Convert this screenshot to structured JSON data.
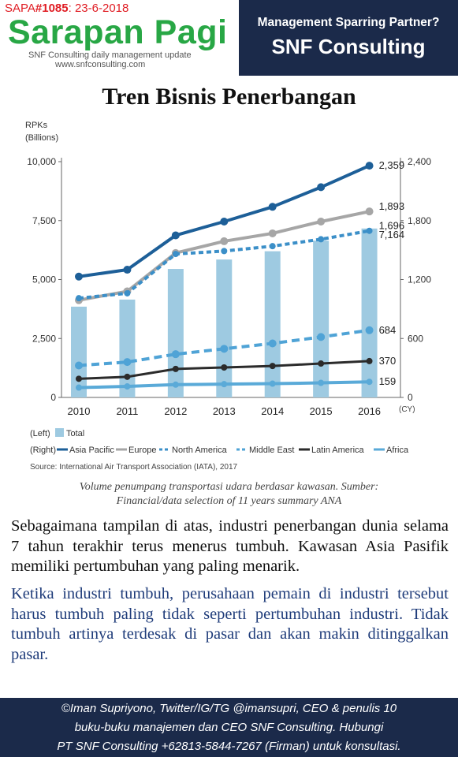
{
  "header": {
    "issue_prefix": "SAPA",
    "issue_number": "#1085",
    "issue_date": ": 23-6-2018",
    "brand_title": "Sarapan Pagi",
    "tagline": "SNF Consulting daily management update",
    "website": "www.snfconsulting.com",
    "promo_question": "Management Sparring Partner?",
    "promo_name": "SNF Consulting"
  },
  "page_title": "Tren Bisnis Penerbangan",
  "chart_data": {
    "type": "bar+line",
    "categories": [
      "2010",
      "2011",
      "2012",
      "2013",
      "2014",
      "2015",
      "2016"
    ],
    "x_unit": "(CY)",
    "left_axis": {
      "label_line1": "RPKs",
      "label_line2": "(Billions)",
      "range": [
        0,
        10000
      ],
      "ticks": [
        "0",
        "2,500",
        "5,000",
        "7,500",
        "10,000"
      ]
    },
    "right_axis": {
      "range": [
        0,
        2400
      ],
      "ticks": [
        "0",
        "600",
        "1,200",
        "1,800",
        "2,400"
      ]
    },
    "bars": {
      "name": "Total",
      "axis": "left",
      "color": "#9ecae1",
      "values": [
        3850,
        4150,
        5450,
        5850,
        6200,
        6650,
        7164
      ],
      "end_label": "7,164"
    },
    "series": [
      {
        "name": "Asia Pacific",
        "axis": "right",
        "color": "#1d5f98",
        "dash": "solid",
        "values": [
          1230,
          1300,
          1650,
          1790,
          1940,
          2140,
          2359
        ],
        "end_label": "2,359"
      },
      {
        "name": "Europe",
        "axis": "right",
        "color": "#a6a6a6",
        "dash": "solid",
        "values": [
          990,
          1080,
          1470,
          1590,
          1670,
          1790,
          1893
        ],
        "end_label": "1,893"
      },
      {
        "name": "North America",
        "axis": "right",
        "color": "#3b8fc8",
        "dash": "dashed",
        "values": [
          1010,
          1060,
          1460,
          1490,
          1540,
          1610,
          1696
        ],
        "end_label": "1,696"
      },
      {
        "name": "Middle East",
        "axis": "right",
        "color": "#4fa3d6",
        "dash": "dashed",
        "values": [
          325,
          360,
          440,
          495,
          550,
          615,
          684
        ],
        "end_label": "684"
      },
      {
        "name": "Latin America",
        "axis": "right",
        "color": "#2b2b2b",
        "dash": "solid",
        "values": [
          190,
          210,
          290,
          305,
          320,
          345,
          370
        ],
        "end_label": "370"
      },
      {
        "name": "Africa",
        "axis": "right",
        "color": "#5aaad8",
        "dash": "solid",
        "values": [
          100,
          112,
          130,
          135,
          140,
          148,
          159
        ],
        "end_label": "159"
      }
    ],
    "legend": {
      "left_prefix": "(Left)",
      "right_prefix": "(Right)",
      "placement": "bottom-left"
    },
    "source": "Source: International Air Transport Association (IATA), 2017",
    "grid": false
  },
  "caption_line1": "Volume penumpang transportasi udara berdasar kawasan. Sumber:",
  "caption_line2": "Financial/data selection of 11 years summary ANA",
  "paragraph1": "Sebagaimana tampilan di atas, industri penerbangan dunia selama 7 tahun terakhir terus menerus tumbuh. Kawasan Asia Pasifik memiliki pertumbuhan yang paling menarik.",
  "paragraph2": "Ketika industri tumbuh, perusahaan pemain di industri tersebut harus tumbuh paling tidak seperti pertumbuhan industri. Tidak tumbuh artinya terdesak di pasar dan akan makin ditinggalkan pasar.",
  "footer": {
    "line1": "©Iman Supriyono, Twitter/IG/TG @imansupri, CEO & penulis 10",
    "line2": "buku-buku manajemen dan CEO  SNF  Consulting.  Hubungi",
    "line3": "PT SNF Consulting +62813-5844-7267 (Firman)  untuk konsultasi."
  },
  "colors": {
    "navy": "#1b2a4a",
    "green": "#28a745",
    "red": "#e01d24"
  }
}
